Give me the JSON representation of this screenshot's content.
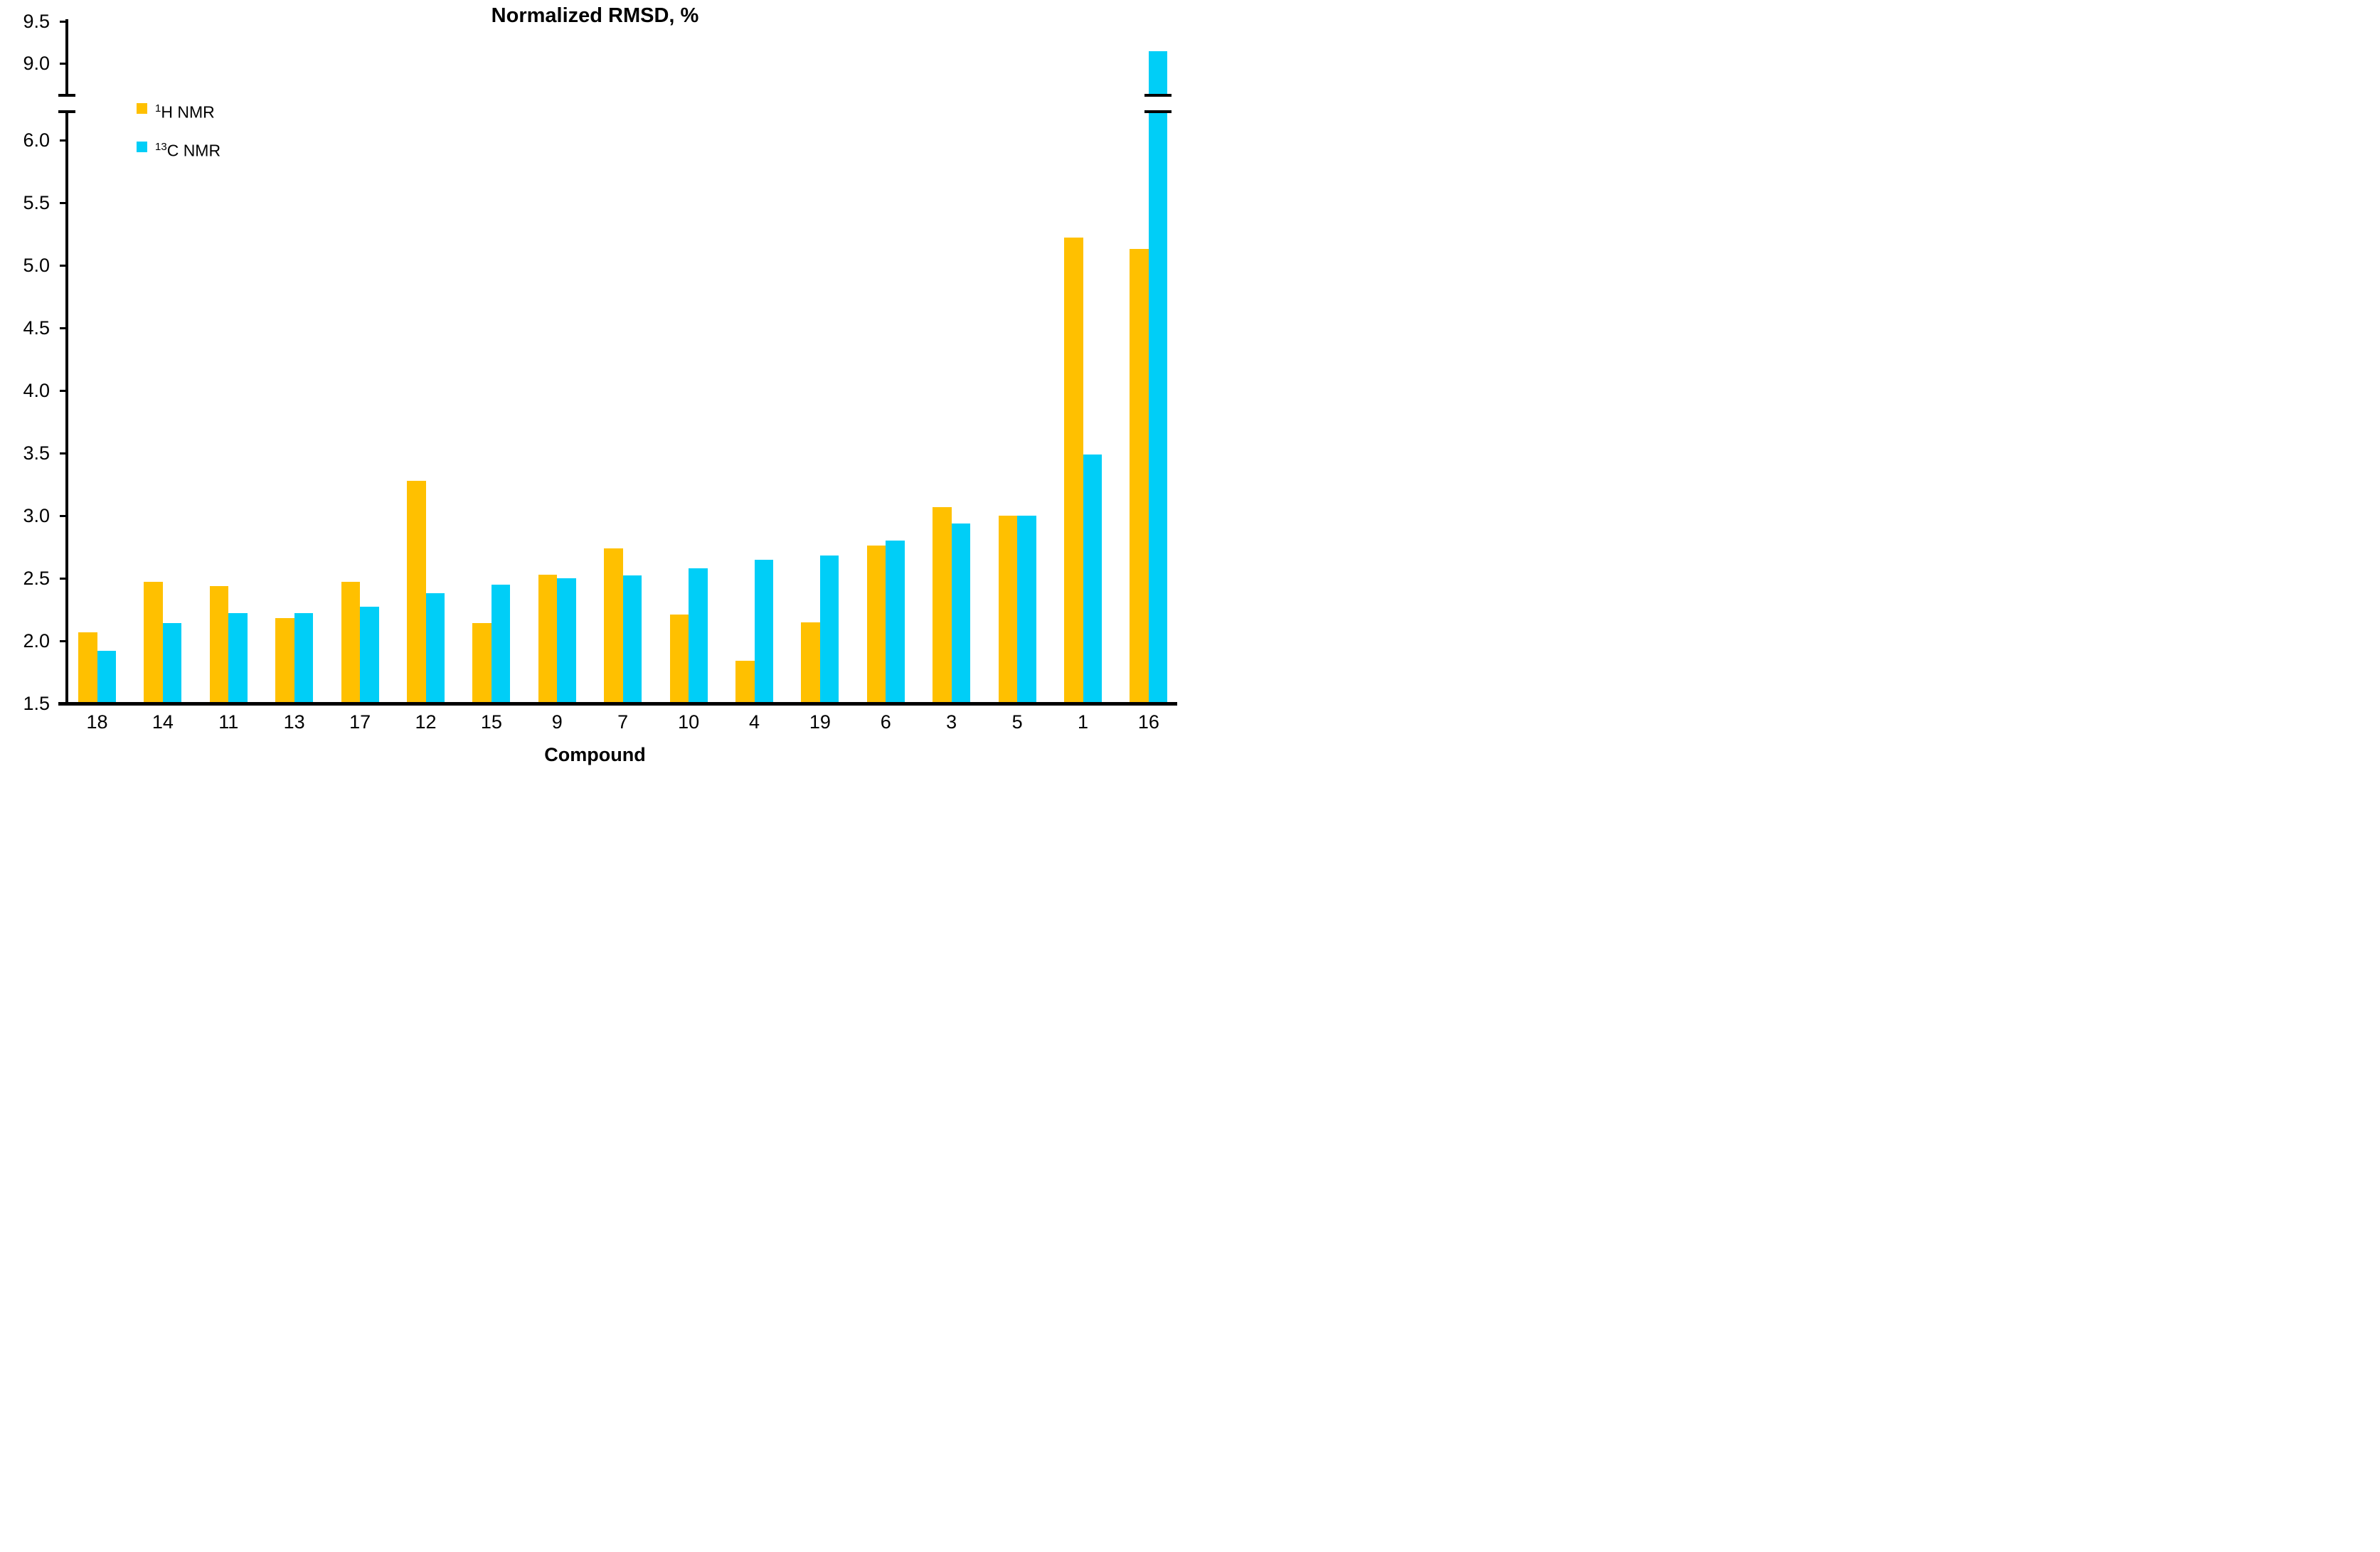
{
  "title": "Normalized RMSD, %",
  "xlabel": "Compound",
  "legend": {
    "items": [
      {
        "sup": "1",
        "main": "H NMR",
        "color": "#FFC000"
      },
      {
        "sup": "13",
        "main": "C NMR",
        "color": "#00CEF7"
      }
    ]
  },
  "chart_data": {
    "type": "bar",
    "title": "Normalized RMSD, %",
    "xlabel": "Compound",
    "ylabel": "",
    "grid": false,
    "legend_position": "top-left",
    "categories": [
      "18",
      "14",
      "11",
      "13",
      "17",
      "12",
      "15",
      "9",
      "7",
      "10",
      "4",
      "19",
      "6",
      "3",
      "5",
      "1",
      "16"
    ],
    "series": [
      {
        "name": "1H NMR",
        "color": "#FFC000",
        "values": [
          2.07,
          2.47,
          2.44,
          2.18,
          2.47,
          3.28,
          2.14,
          2.53,
          2.74,
          2.21,
          1.84,
          2.15,
          2.76,
          3.07,
          3.0,
          5.22,
          5.13
        ]
      },
      {
        "name": "13C NMR",
        "color": "#00CEF7",
        "values": [
          1.92,
          2.14,
          2.22,
          2.22,
          2.27,
          2.38,
          2.45,
          2.5,
          2.52,
          2.58,
          2.65,
          2.68,
          2.8,
          2.94,
          3.0,
          3.49,
          9.14
        ]
      }
    ],
    "y_axis": {
      "lower_ticks": [
        1.5,
        2.0,
        2.5,
        3.0,
        3.5,
        4.0,
        4.5,
        5.0,
        5.5,
        6.0
      ],
      "upper_ticks": [
        9.0,
        9.5
      ],
      "lower_range": [
        1.5,
        6.3
      ],
      "upper_range": [
        8.65,
        9.5
      ],
      "axis_break": true
    }
  }
}
